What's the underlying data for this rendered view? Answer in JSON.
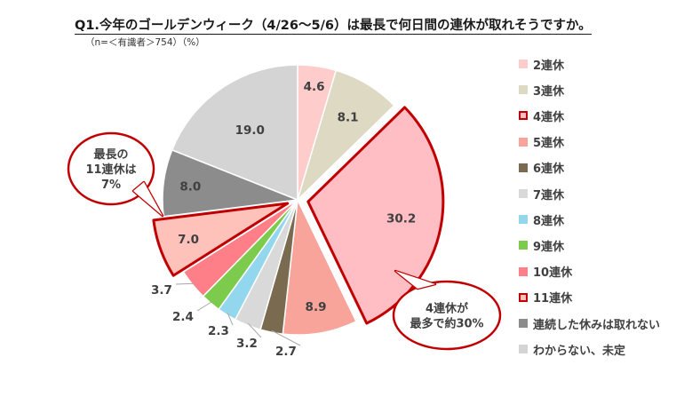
{
  "title": "Q1.今年のゴールデンウィーク（4/26〜5/6）は最長で何日間の連休が取れそうですか。",
  "subtitle": "（n=＜有識者＞754）（%）",
  "chart_data": {
    "type": "pie",
    "categories": [
      "2連休",
      "3連休",
      "4連休",
      "5連休",
      "6連休",
      "7連休",
      "8連休",
      "9連休",
      "10連休",
      "11連休",
      "連続した休みは取れない",
      "わからない、未定"
    ],
    "values": [
      4.6,
      8.1,
      30.2,
      8.9,
      2.7,
      3.2,
      2.3,
      2.4,
      3.7,
      7.0,
      8.0,
      19.0
    ],
    "value_labels": [
      "4.6",
      "8.1",
      "30.2",
      "8.9",
      "2.7",
      "3.2",
      "2.3",
      "2.4",
      "3.7",
      "7.0",
      "8.0",
      "19.0"
    ],
    "colors": [
      "#FFCCCC",
      "#DDD9C3",
      "#FFBDC4",
      "#F8A49A",
      "#7A6A4F",
      "#D9D9D9",
      "#93D7EE",
      "#7DCB4C",
      "#FF7F88",
      "#FFC2BA",
      "#8C8C8C",
      "#D4D4D4"
    ],
    "highlight_color": "#C00000",
    "highlighted": [
      "4連休",
      "11連休"
    ],
    "callouts": [
      {
        "slice": "4連休",
        "lines": [
          "4連休が",
          "最多で約30%"
        ]
      },
      {
        "slice": "11連休",
        "lines": [
          "最長の",
          "11連休は",
          "7%"
        ]
      }
    ],
    "legend_position": "right"
  }
}
